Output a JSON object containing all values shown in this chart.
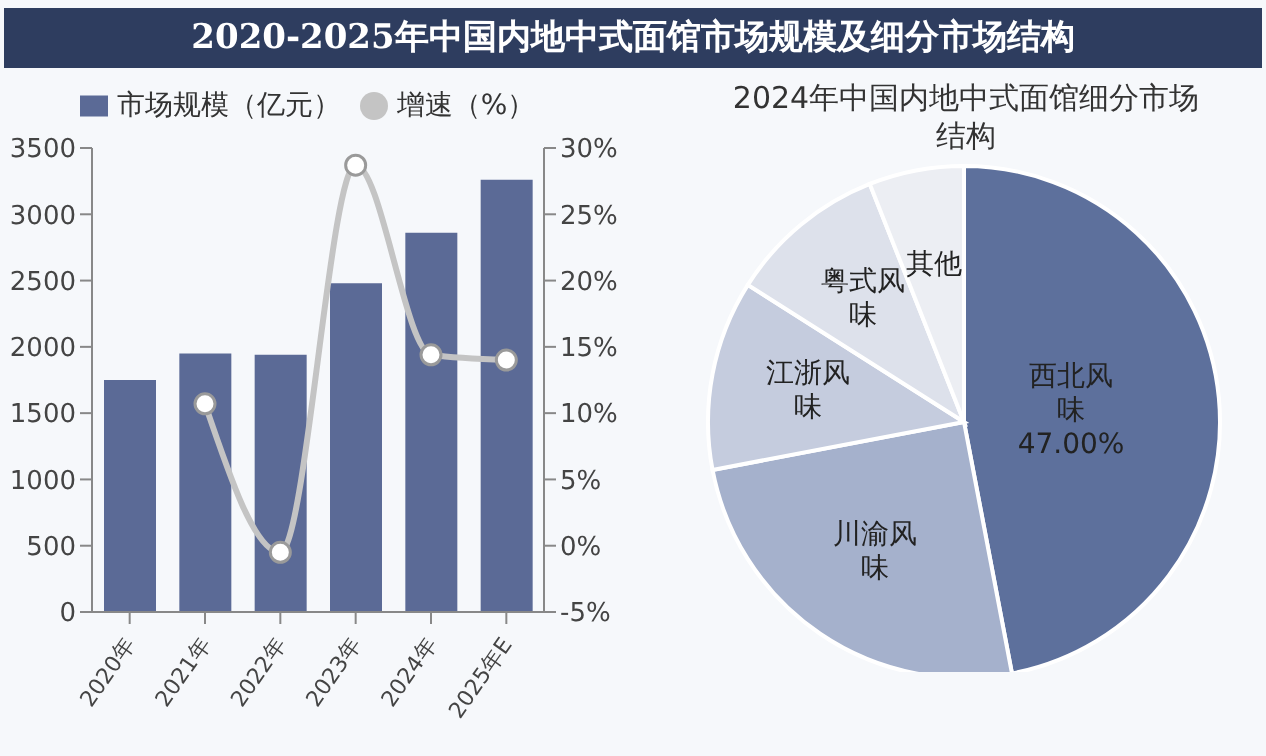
{
  "chart_data": [
    {
      "type": "bar",
      "title": "2020-2025年中国内地中式面馆市场规模及细分市场结构",
      "categories": [
        "2020年",
        "2021年",
        "2022年",
        "2023年",
        "2024年",
        "2025年E"
      ],
      "series": [
        {
          "name": "市场规模（亿元）",
          "color": "#5b6a96",
          "values": [
            1750,
            1950,
            1940,
            2480,
            2860,
            3260
          ]
        },
        {
          "name": "增速（%）",
          "type": "line",
          "axis": "y2",
          "color": "#c4c4c4",
          "marker": "circle",
          "values": [
            null,
            10.7,
            -0.5,
            28.7,
            14.4,
            14.0
          ]
        }
      ],
      "ylim": [
        0,
        3500
      ],
      "yticks": [
        0,
        500,
        1000,
        1500,
        2000,
        2500,
        3000,
        3500
      ],
      "y2lim": [
        -5,
        30
      ],
      "y2ticks": [
        {
          "value": -5,
          "label": "-5%"
        },
        {
          "value": 0,
          "label": "0%"
        },
        {
          "value": 5,
          "label": "5%"
        },
        {
          "value": 10,
          "label": "10%"
        },
        {
          "value": 15,
          "label": "15%"
        },
        {
          "value": 20,
          "label": "20%"
        },
        {
          "value": 25,
          "label": "25%"
        },
        {
          "value": 30,
          "label": "30%"
        }
      ],
      "grid": false,
      "legend": "top"
    },
    {
      "type": "pie",
      "title": "2024年中国内地中式面馆细分市场结构",
      "categories": [
        "西北风味",
        "川渝风味",
        "江浙风味",
        "粤式风味",
        "其他"
      ],
      "values": [
        47,
        25,
        12,
        10,
        6
      ],
      "colors": [
        "#5d709c",
        "#a5b1cc",
        "#c5ccde",
        "#dde1eb",
        "#eceef3"
      ],
      "value_labels": [
        "47.00%",
        null,
        null,
        null,
        null
      ]
    }
  ]
}
